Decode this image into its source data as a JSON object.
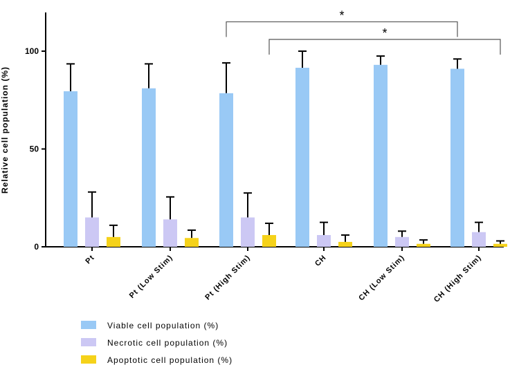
{
  "chart_data": {
    "type": "bar",
    "title": "",
    "xlabel": "",
    "ylabel": "Relative cell population (%)",
    "ylim": [
      0,
      120
    ],
    "yticks": [
      0,
      50,
      100
    ],
    "grid": false,
    "legend_position": "bottom-left",
    "categories": [
      "Pt",
      "Pt (Low Stim)",
      "Pt (High Stim)",
      "CH",
      "CH (Low Stim)",
      "CH (High Stim)"
    ],
    "series": [
      {
        "name": "Viable cell population (%)",
        "color": "#99c9f5",
        "values": [
          79.5,
          81,
          78.5,
          91.5,
          93,
          91
        ],
        "errors": [
          14,
          12.5,
          15.5,
          8.5,
          4.5,
          5
        ]
      },
      {
        "name": "Necrotic cell population (%)",
        "color": "#ccc8f4",
        "values": [
          15,
          14,
          15,
          6,
          5,
          7.5
        ],
        "errors": [
          13,
          11.5,
          12.5,
          6.5,
          3,
          5
        ]
      },
      {
        "name": "Apoptotic cell population (%)",
        "color": "#f5d21a",
        "values": [
          5,
          4.5,
          6,
          2.5,
          1.5,
          1.5
        ],
        "errors": [
          6,
          4,
          6,
          3.5,
          2,
          1.5
        ]
      }
    ],
    "annotations": [
      {
        "text": "*",
        "from_category": "Pt (High Stim)",
        "to_category": "CH (High Stim)",
        "series_from": "Viable cell population (%)",
        "series_to": "Viable cell population (%)",
        "level": 115
      },
      {
        "text": "*",
        "from_category": "Pt (High Stim)",
        "to_category": "CH (High Stim)",
        "series_from": "Apoptotic cell population (%)",
        "series_to": "Apoptotic cell population (%)",
        "level": 106
      }
    ]
  }
}
